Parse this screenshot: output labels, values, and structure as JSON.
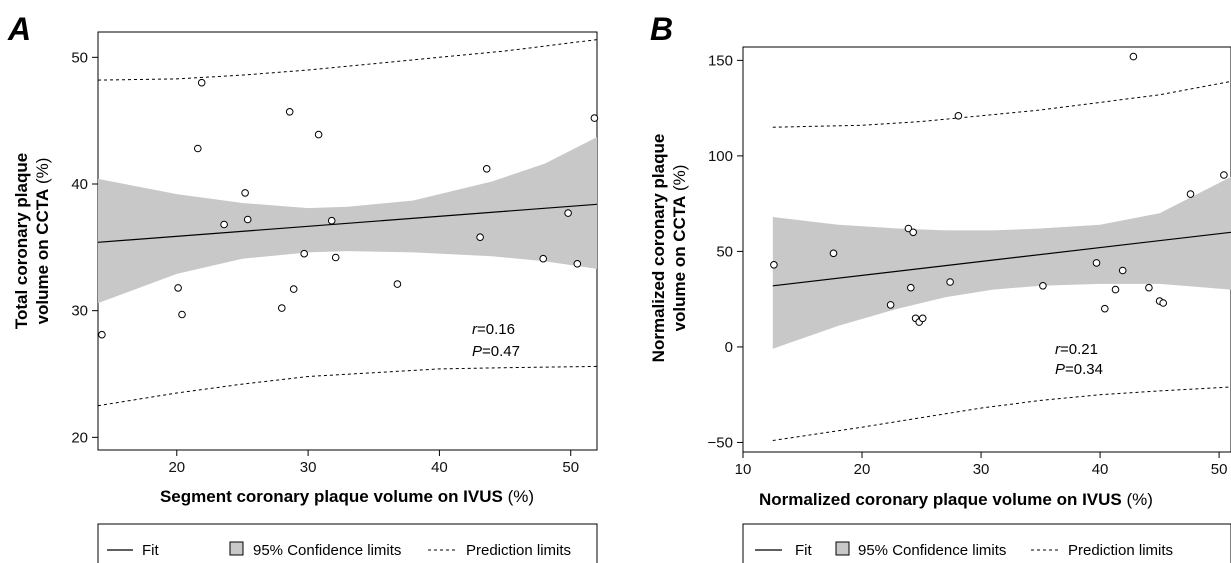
{
  "chart_data": [
    {
      "type": "scatter",
      "panel_label": "A",
      "xlabel_bold": "Segment coronary plaque volume on IVUS",
      "xlabel_unit": " (%)",
      "ylabel_line1_bold": "Total coronary plaque",
      "ylabel_line2_bold": "volume on CCTA",
      "ylabel_unit": " (%)",
      "xlim": [
        14,
        52
      ],
      "ylim": [
        19,
        52
      ],
      "xticks": [
        20,
        30,
        40,
        50
      ],
      "yticks": [
        20,
        30,
        40,
        50
      ],
      "x": [
        14.3,
        20.1,
        20.4,
        21.6,
        21.9,
        23.6,
        25.2,
        25.4,
        28.0,
        28.6,
        28.9,
        29.7,
        30.8,
        31.8,
        32.1,
        36.8,
        43.1,
        43.6,
        47.9,
        49.8,
        50.5,
        51.8
      ],
      "y": [
        28.1,
        31.8,
        29.7,
        42.8,
        48.0,
        36.8,
        39.3,
        37.2,
        30.2,
        45.7,
        31.7,
        34.5,
        43.9,
        37.1,
        34.2,
        32.1,
        35.8,
        41.2,
        34.1,
        37.7,
        33.7,
        45.2
      ],
      "fit": {
        "x": [
          14,
          52
        ],
        "y": [
          35.4,
          38.4
        ]
      },
      "confidence_upper": {
        "x": [
          14,
          20,
          25,
          30,
          33,
          38,
          44,
          48,
          52
        ],
        "y": [
          40.4,
          39.2,
          38.5,
          38.1,
          38.2,
          38.7,
          40.2,
          41.6,
          43.7
        ]
      },
      "confidence_lower": {
        "x": [
          14,
          20,
          25,
          30,
          33,
          38,
          44,
          48,
          52
        ],
        "y": [
          30.6,
          32.9,
          34.1,
          34.6,
          34.7,
          34.6,
          34.3,
          33.9,
          33.3
        ]
      },
      "prediction_upper": {
        "x": [
          14,
          20,
          25,
          30,
          35,
          40,
          45,
          52
        ],
        "y": [
          48.2,
          48.3,
          48.6,
          49.0,
          49.5,
          50.0,
          50.5,
          51.4
        ]
      },
      "prediction_lower": {
        "x": [
          14,
          20,
          25,
          30,
          35,
          40,
          45,
          52
        ],
        "y": [
          22.5,
          23.5,
          24.2,
          24.8,
          25.1,
          25.4,
          25.5,
          25.6
        ]
      },
      "stats": {
        "r_symbol": "r",
        "r_value": "=0.16",
        "p_symbol": "P",
        "p_value": "=0.47"
      }
    },
    {
      "type": "scatter",
      "panel_label": "B",
      "xlabel_bold": "Normalized coronary plaque volume on IVUS",
      "xlabel_unit": " (%)",
      "ylabel_line1_bold": "Normalized coronary plaque",
      "ylabel_line2_bold": "volume on CCTA",
      "ylabel_unit": " (%)",
      "xlim": [
        10,
        51
      ],
      "ylim": [
        -55,
        157
      ],
      "xticks": [
        10,
        20,
        30,
        40,
        50
      ],
      "xtick_labels": [
        "10",
        "20",
        "30",
        "40",
        "50"
      ],
      "yticks": [
        -50,
        0,
        50,
        100,
        150
      ],
      "ytick_labels": [
        "−50",
        "0",
        "50",
        "100",
        "150"
      ],
      "x": [
        12.6,
        17.6,
        22.4,
        23.9,
        24.1,
        24.3,
        24.5,
        24.8,
        25.1,
        27.4,
        28.1,
        35.2,
        39.7,
        40.4,
        41.3,
        41.9,
        42.8,
        44.1,
        45.0,
        45.3,
        47.6,
        50.4
      ],
      "y": [
        43,
        49,
        22,
        62,
        31,
        60,
        15,
        13,
        15,
        34,
        121,
        32,
        44,
        20,
        30,
        40,
        152,
        31,
        24,
        23,
        80,
        90
      ],
      "fit": {
        "x": [
          12.5,
          51
        ],
        "y": [
          32,
          60
        ]
      },
      "confidence_upper": {
        "x": [
          12.5,
          18,
          23,
          27,
          31,
          35,
          40,
          45,
          51
        ],
        "y": [
          68,
          64,
          62,
          61,
          61,
          62,
          64,
          70,
          89
        ]
      },
      "confidence_lower": {
        "x": [
          12.5,
          18,
          23,
          27,
          31,
          35,
          40,
          45,
          51
        ],
        "y": [
          -1,
          11,
          20,
          26,
          30,
          32,
          33,
          33,
          30
        ]
      },
      "prediction_upper": {
        "x": [
          12.5,
          20,
          25,
          30,
          35,
          40,
          45,
          51
        ],
        "y": [
          115,
          116,
          118,
          121,
          124,
          128,
          132,
          139
        ]
      },
      "prediction_lower": {
        "x": [
          12.5,
          20,
          25,
          30,
          35,
          40,
          45,
          51
        ],
        "y": [
          -49,
          -42,
          -37,
          -32,
          -28,
          -25,
          -23,
          -21
        ]
      },
      "stats": {
        "r_symbol": "r",
        "r_value": "=0.21",
        "p_symbol": "P",
        "p_value": "=0.34"
      }
    }
  ],
  "legend": {
    "fit_label": "Fit",
    "confidence_label": "95% Confidence limits",
    "prediction_label": "Prediction limits"
  },
  "colors": {
    "confidence_band": "#c8c8c8",
    "line": "#000000",
    "marker_fill": "#ffffff"
  }
}
